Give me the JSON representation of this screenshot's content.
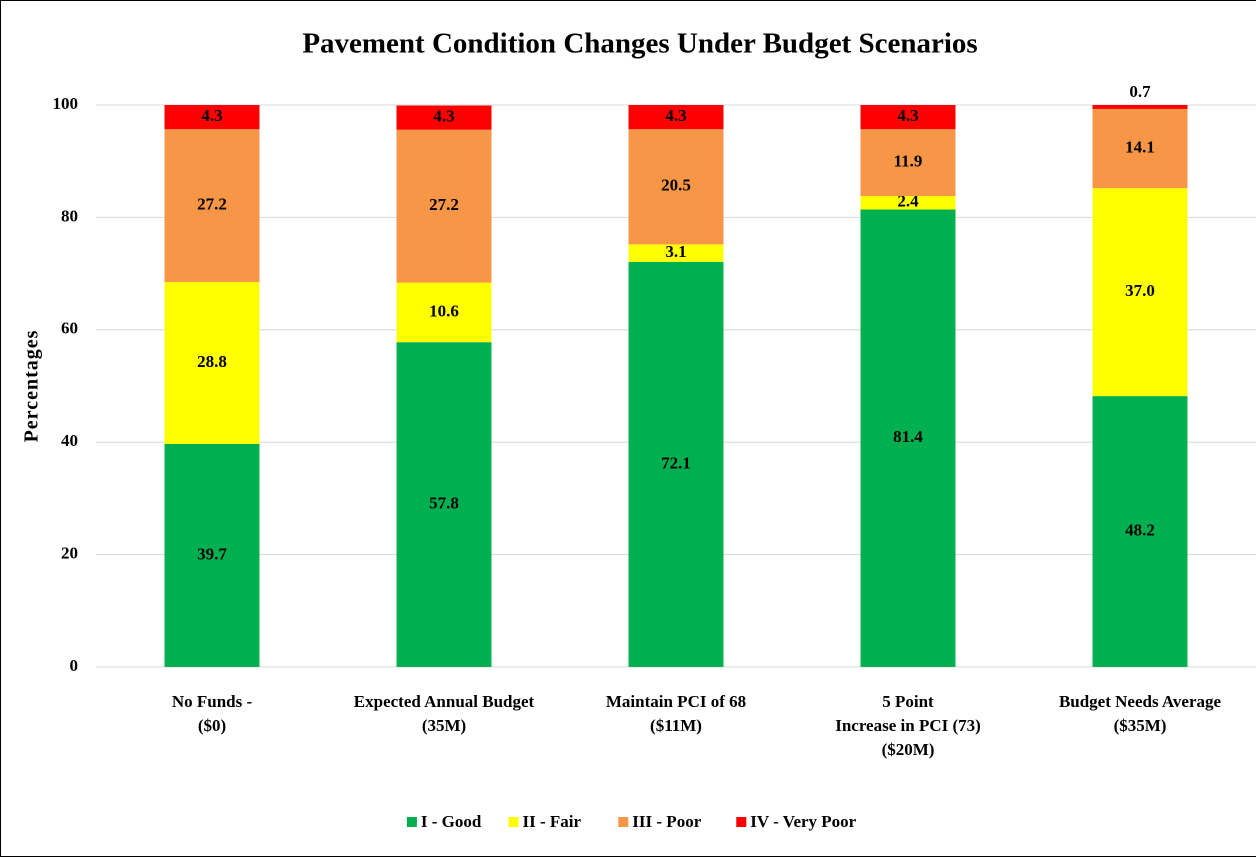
{
  "chart_data": {
    "type": "stacked_bar",
    "title": "Pavement Condition Changes Under Budget Scenarios",
    "y_label": "Percentages",
    "categories": [
      [
        "No Funds -",
        "($0)"
      ],
      [
        "Expected Annual Budget",
        "(35M)"
      ],
      [
        "Maintain PCI of 68",
        "($11M)"
      ],
      [
        "5 Point",
        "Increase in PCI (73)",
        "($20M)"
      ],
      [
        "Budget Needs Average",
        "($35M)"
      ]
    ],
    "series": [
      {
        "name": "I - Good",
        "color": "#00b050",
        "values": [
          39.7,
          57.8,
          72.1,
          81.4,
          48.2
        ]
      },
      {
        "name": "II - Fair",
        "color": "#ffff00",
        "values": [
          28.8,
          10.6,
          3.1,
          2.4,
          37.0
        ],
        "value_labels": [
          "28.8",
          "10.6",
          "3.1",
          "2.4",
          "37.0"
        ]
      },
      {
        "name": "III - Poor",
        "color": "#f79646",
        "values": [
          27.2,
          27.2,
          20.5,
          11.9,
          14.1
        ]
      },
      {
        "name": "IV - Very Poor",
        "color": "#ff0000",
        "values": [
          4.3,
          4.3,
          4.3,
          4.3,
          0.7
        ]
      }
    ],
    "ylim": [
      0,
      100
    ],
    "yticks": [
      0,
      20,
      40,
      60,
      80,
      100
    ],
    "grid": true,
    "legend": "bottom"
  }
}
